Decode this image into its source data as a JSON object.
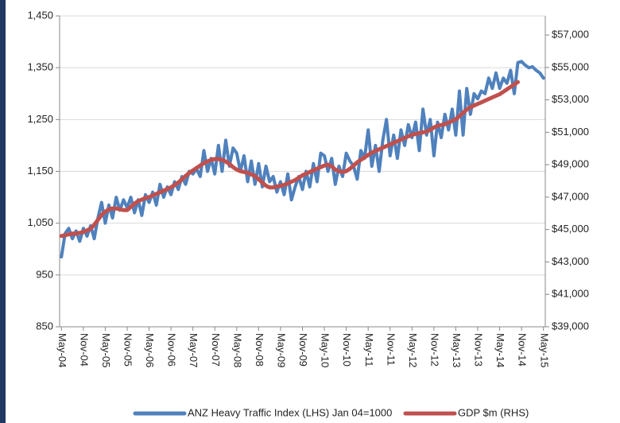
{
  "chart_data": {
    "type": "line",
    "categories": [
      "May-04",
      null,
      null,
      null,
      null,
      null,
      "Nov-04",
      null,
      null,
      null,
      null,
      null,
      "May-05",
      null,
      null,
      null,
      null,
      null,
      "Nov-05",
      null,
      null,
      null,
      null,
      null,
      "May-06",
      null,
      null,
      null,
      null,
      null,
      "Nov-06",
      null,
      null,
      null,
      null,
      null,
      "May-07",
      null,
      null,
      null,
      null,
      null,
      "Nov-07",
      null,
      null,
      null,
      null,
      null,
      "May-08",
      null,
      null,
      null,
      null,
      null,
      "Nov-08",
      null,
      null,
      null,
      null,
      null,
      "May-09",
      null,
      null,
      null,
      null,
      null,
      "Nov-09",
      null,
      null,
      null,
      null,
      null,
      "May-10",
      null,
      null,
      null,
      null,
      null,
      "Nov-10",
      null,
      null,
      null,
      null,
      null,
      "May-11",
      null,
      null,
      null,
      null,
      null,
      "Nov-11",
      null,
      null,
      null,
      null,
      null,
      "May-12",
      null,
      null,
      null,
      null,
      null,
      "Nov-12",
      null,
      null,
      null,
      null,
      null,
      "May-13",
      null,
      null,
      null,
      null,
      null,
      "Nov-13",
      null,
      null,
      null,
      null,
      null,
      "May-14",
      null,
      null,
      null,
      null,
      null,
      "Nov-14",
      null,
      null,
      null,
      null,
      null,
      "May-15"
    ],
    "series": [
      {
        "name": "ANZ Heavy Traffic Index (LHS) Jan 04=1000",
        "color": "#4f81bd",
        "axis": "y",
        "values": [
          985,
          1030,
          1040,
          1020,
          1035,
          1015,
          1040,
          1025,
          1045,
          1020,
          1060,
          1090,
          1050,
          1085,
          1060,
          1100,
          1075,
          1095,
          1080,
          1100,
          1070,
          1095,
          1065,
          1105,
          1090,
          1110,
          1085,
          1125,
          1100,
          1120,
          1105,
          1130,
          1115,
          1140,
          1125,
          1150,
          1145,
          1155,
          1140,
          1190,
          1150,
          1175,
          1145,
          1200,
          1150,
          1210,
          1160,
          1195,
          1185,
          1150,
          1180,
          1130,
          1170,
          1125,
          1165,
          1120,
          1160,
          1130,
          1140,
          1110,
          1130,
          1105,
          1145,
          1095,
          1120,
          1140,
          1115,
          1150,
          1120,
          1165,
          1130,
          1185,
          1180,
          1150,
          1175,
          1125,
          1160,
          1140,
          1185,
          1170,
          1160,
          1135,
          1190,
          1175,
          1230,
          1160,
          1200,
          1150,
          1210,
          1250,
          1180,
          1220,
          1175,
          1230,
          1200,
          1240,
          1215,
          1245,
          1190,
          1270,
          1220,
          1250,
          1180,
          1245,
          1215,
          1260,
          1230,
          1270,
          1220,
          1305,
          1220,
          1310,
          1260,
          1300,
          1290,
          1305,
          1300,
          1330,
          1310,
          1340,
          1310,
          1330,
          1320,
          1345,
          1300,
          1360,
          1362,
          1355,
          1350,
          1352,
          1345,
          1340,
          1330
        ]
      },
      {
        "name": "GDP $m (RHS)",
        "color": "#c0504d",
        "axis": "y2",
        "values": [
          44600,
          44650,
          44700,
          44750,
          44750,
          44800,
          44850,
          44950,
          45050,
          45300,
          45600,
          45900,
          46100,
          46250,
          46300,
          46300,
          46250,
          46200,
          46200,
          46400,
          46600,
          46750,
          46850,
          46950,
          47000,
          47100,
          47200,
          47300,
          47400,
          47500,
          47600,
          47750,
          47900,
          48100,
          48300,
          48500,
          48650,
          48800,
          48950,
          49100,
          49200,
          49300,
          49350,
          49350,
          49300,
          49200,
          49050,
          48850,
          48700,
          48600,
          48550,
          48500,
          48400,
          48300,
          48100,
          47900,
          47700,
          47600,
          47600,
          47650,
          47700,
          47750,
          47850,
          47950,
          48050,
          48200,
          48350,
          48450,
          48550,
          48650,
          48750,
          48850,
          48950,
          49000,
          48900,
          48700,
          48600,
          48550,
          48600,
          48750,
          48950,
          49150,
          49300,
          49450,
          49600,
          49750,
          49850,
          49950,
          50050,
          50150,
          50250,
          50350,
          50450,
          50550,
          50650,
          50750,
          50850,
          50900,
          50950,
          51000,
          51050,
          51150,
          51300,
          51400,
          51450,
          51500,
          51600,
          51700,
          51800,
          52000,
          52200,
          52400,
          52550,
          52650,
          52750,
          52850,
          52950,
          53050,
          53150,
          53250,
          53350,
          53500,
          53650,
          53800,
          53950,
          54100,
          null,
          null,
          null,
          null,
          null,
          null,
          null
        ]
      }
    ],
    "ylim": [
      850,
      1450
    ],
    "yticks": [
      850,
      950,
      {
        "value": 1050,
        "label": "1,050"
      },
      {
        "value": 1150,
        "label": "1,150"
      },
      {
        "value": 1250,
        "label": "1,250"
      },
      {
        "value": 1350,
        "label": "1,350"
      },
      {
        "value": 1450,
        "label": "1,450"
      }
    ],
    "y2lim": [
      39000,
      58180
    ],
    "y2ticks": [
      {
        "value": 39000,
        "label": "$39,000"
      },
      {
        "value": 41000,
        "label": "$41,000"
      },
      {
        "value": 43000,
        "label": "$43,000"
      },
      {
        "value": 45000,
        "label": "$45,000"
      },
      {
        "value": 47000,
        "label": "$47,000"
      },
      {
        "value": 49000,
        "label": "$49,000"
      },
      {
        "value": 51000,
        "label": "$51,000"
      },
      {
        "value": 53000,
        "label": "$53,000"
      },
      {
        "value": 55000,
        "label": "$55,000"
      },
      {
        "value": 57000,
        "label": "$57,000"
      }
    ],
    "grid": true,
    "legend": "bottom"
  }
}
